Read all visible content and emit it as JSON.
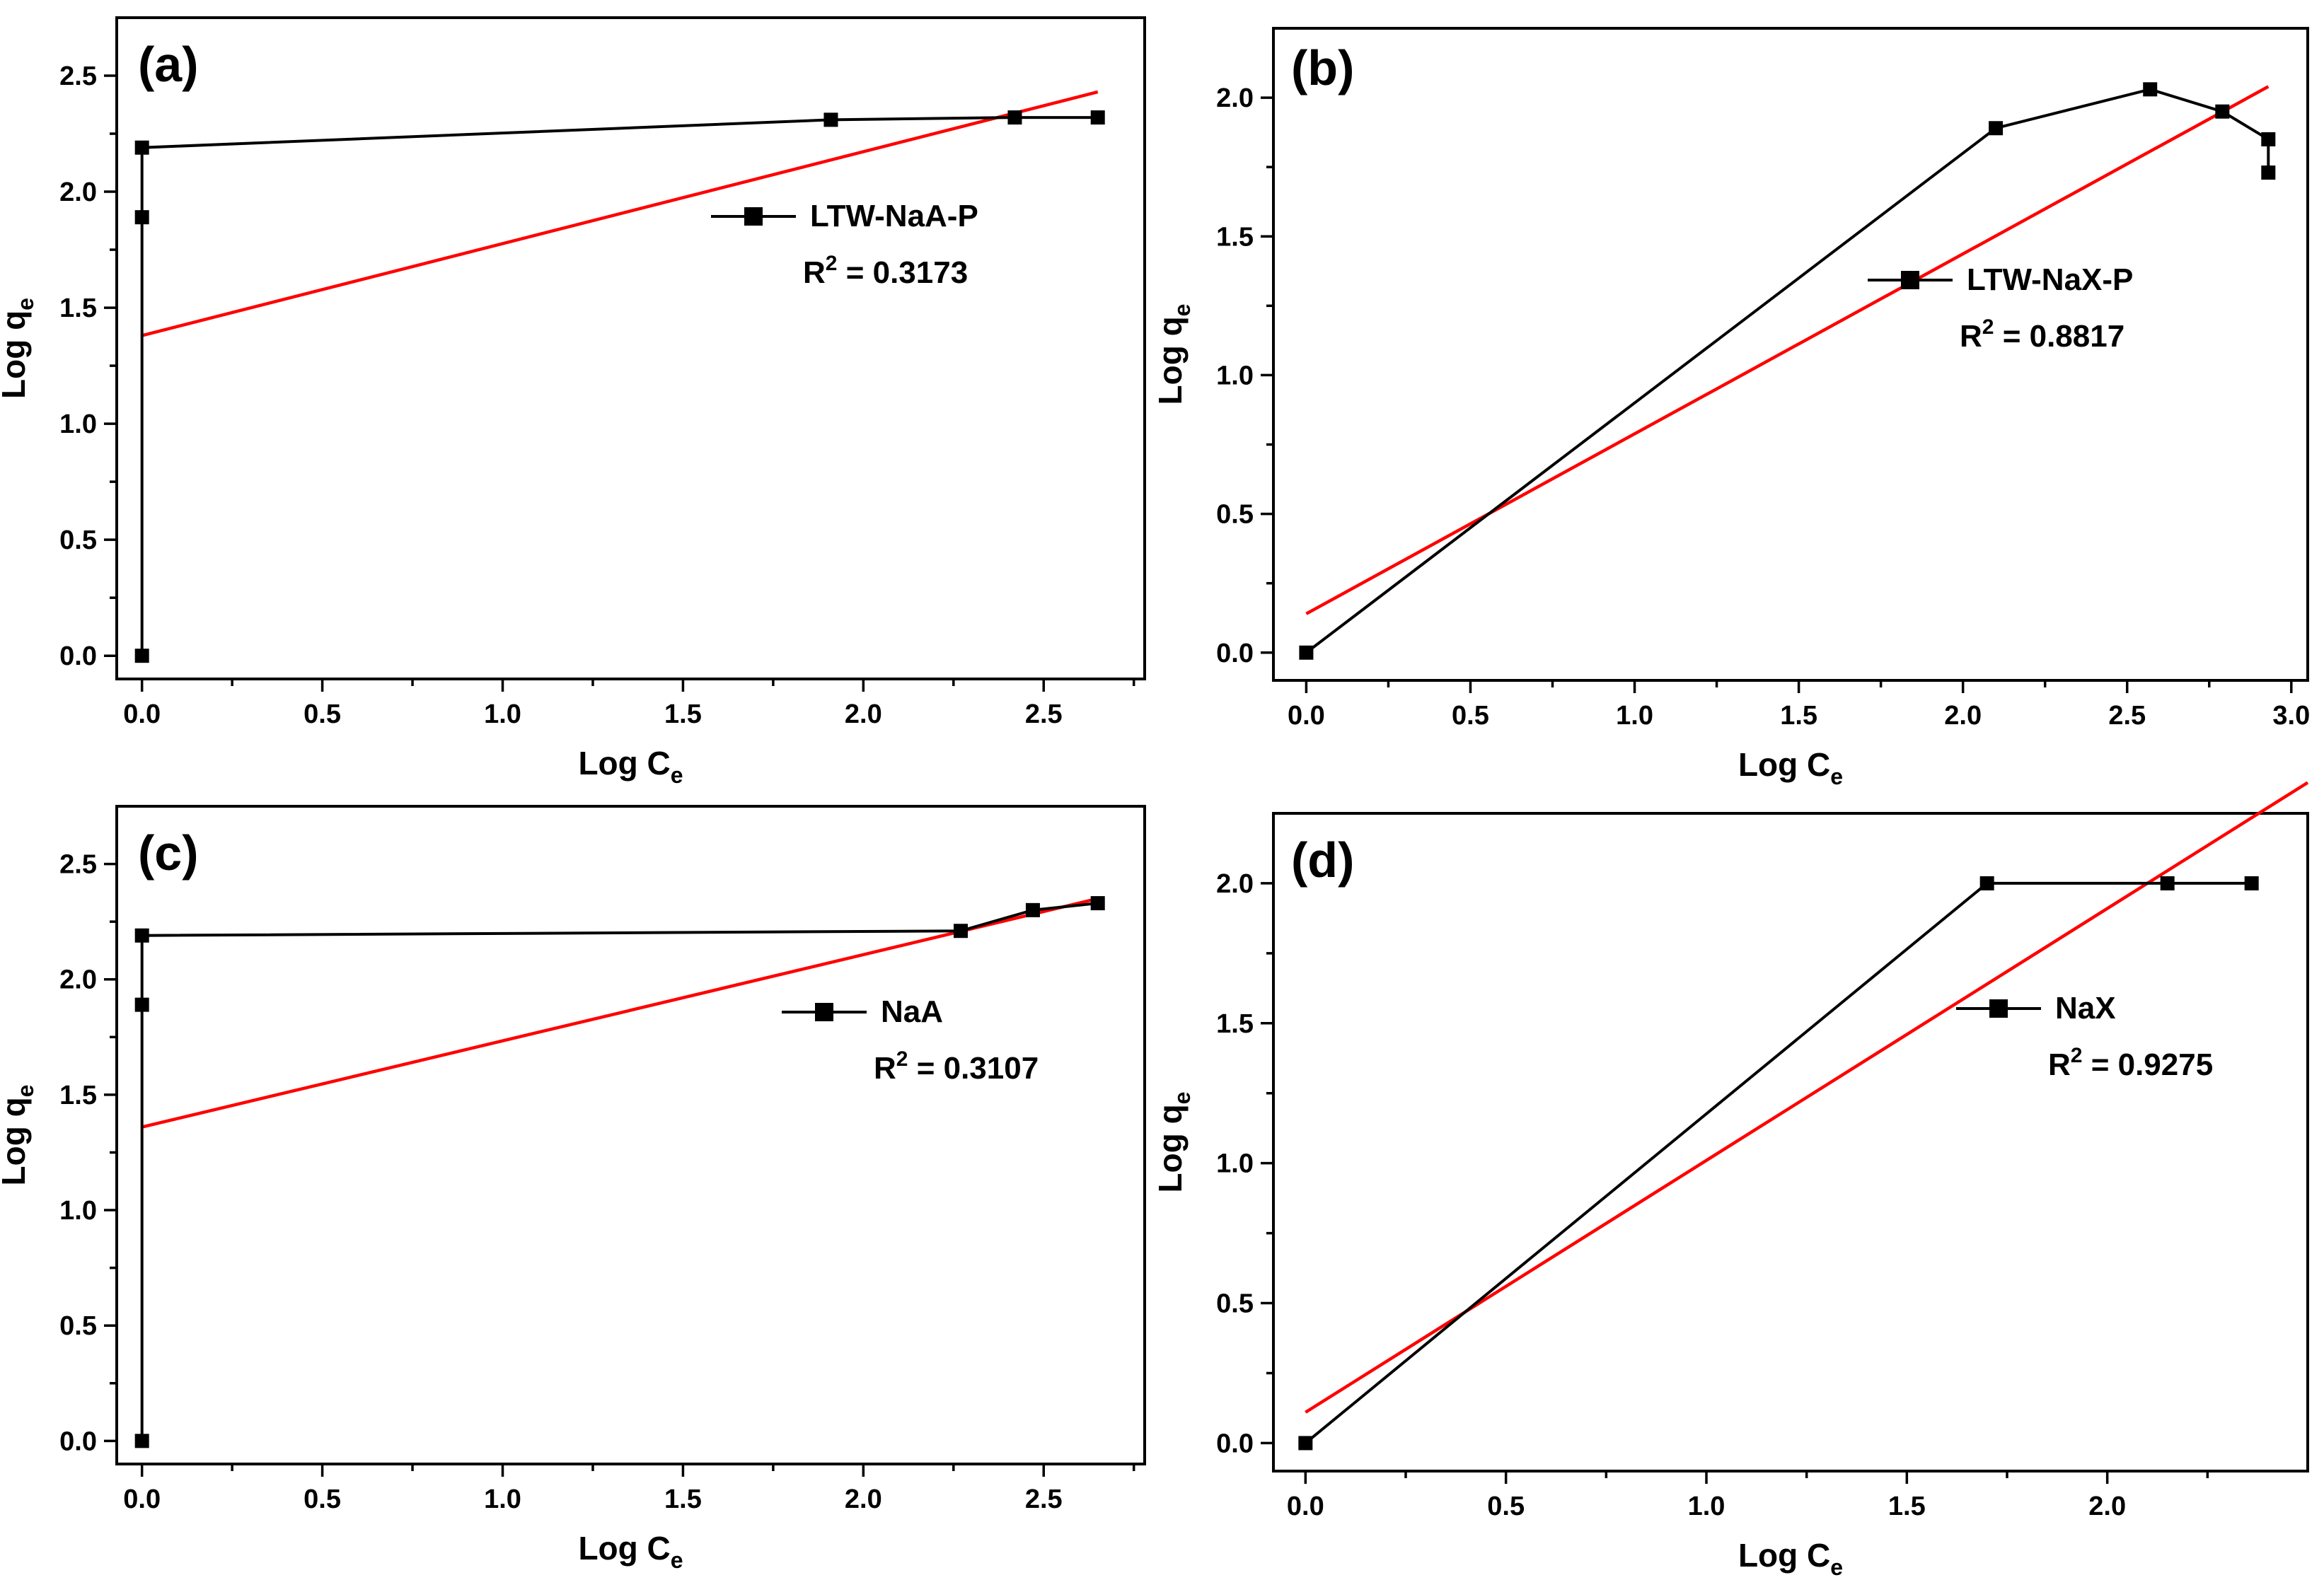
{
  "chart_data": [
    {
      "type": "line",
      "panel_label": "(a)",
      "xlabel": "Log C",
      "xlabel_sub": "e",
      "ylabel": "Log q",
      "ylabel_sub": "e",
      "xlim": [
        -0.07,
        2.78
      ],
      "ylim": [
        -0.1,
        2.75
      ],
      "xticks": [
        "0.0",
        "0.5",
        "1.0",
        "1.5",
        "2.0",
        "2.5"
      ],
      "xtick_values": [
        0,
        0.5,
        1.0,
        1.5,
        2.0,
        2.5
      ],
      "yticks": [
        "0.0",
        "0.5",
        "1.0",
        "1.5",
        "2.0",
        "2.5"
      ],
      "ytick_values": [
        0,
        0.5,
        1.0,
        1.5,
        2.0,
        2.5
      ],
      "series": [
        {
          "name": "LTW-NaA-P",
          "x": [
            0,
            0,
            0,
            1.91,
            2.42,
            2.65
          ],
          "y": [
            0,
            1.89,
            2.19,
            2.31,
            2.32,
            2.32
          ]
        }
      ],
      "fit": {
        "x": [
          0,
          2.65
        ],
        "y": [
          1.38,
          2.43
        ],
        "color": "#ff0000"
      },
      "legend": {
        "label": "LTW-NaA-P",
        "r2_prefix": "R",
        "r2_sup": "2",
        "r2_value": "= 0.3173"
      }
    },
    {
      "type": "line",
      "panel_label": "(b)",
      "xlabel": "Log C",
      "xlabel_sub": "e",
      "ylabel": "Log q",
      "ylabel_sub": "e",
      "xlim": [
        -0.1,
        3.05
      ],
      "ylim": [
        -0.1,
        2.25
      ],
      "xticks": [
        "0.0",
        "0.5",
        "1.0",
        "1.5",
        "2.0",
        "2.5",
        "3.0"
      ],
      "xtick_values": [
        0,
        0.5,
        1.0,
        1.5,
        2.0,
        2.5,
        3.0
      ],
      "yticks": [
        "0.0",
        "0.5",
        "1.0",
        "1.5",
        "2.0"
      ],
      "ytick_values": [
        0,
        0.5,
        1.0,
        1.5,
        2.0
      ],
      "series": [
        {
          "name": "LTW-NaX-P",
          "x": [
            0,
            2.1,
            2.57,
            2.79,
            2.93,
            2.93
          ],
          "y": [
            0,
            1.89,
            2.03,
            1.95,
            1.85,
            1.73
          ]
        }
      ],
      "fit": {
        "x": [
          0,
          2.93
        ],
        "y": [
          0.14,
          2.04
        ],
        "color": "#ff0000"
      },
      "legend": {
        "label": "LTW-NaX-P",
        "r2_prefix": "R",
        "r2_sup": "2",
        "r2_value": "= 0.8817"
      }
    },
    {
      "type": "line",
      "panel_label": "(c)",
      "xlabel": "Log C",
      "xlabel_sub": "e",
      "ylabel": "Log q",
      "ylabel_sub": "e",
      "xlim": [
        -0.07,
        2.78
      ],
      "ylim": [
        -0.1,
        2.75
      ],
      "xticks": [
        "0.0",
        "0.5",
        "1.0",
        "1.5",
        "2.0",
        "2.5"
      ],
      "xtick_values": [
        0,
        0.5,
        1.0,
        1.5,
        2.0,
        2.5
      ],
      "yticks": [
        "0.0",
        "0.5",
        "1.0",
        "1.5",
        "2.0",
        "2.5"
      ],
      "ytick_values": [
        0,
        0.5,
        1.0,
        1.5,
        2.0,
        2.5
      ],
      "series": [
        {
          "name": "NaA",
          "x": [
            0,
            0,
            0,
            2.27,
            2.47,
            2.65
          ],
          "y": [
            0,
            1.89,
            2.19,
            2.21,
            2.3,
            2.33
          ]
        }
      ],
      "fit": {
        "x": [
          0,
          2.65
        ],
        "y": [
          1.36,
          2.35
        ],
        "color": "#ff0000"
      },
      "legend": {
        "label": "NaA",
        "r2_prefix": "R",
        "r2_sup": "2",
        "r2_value": "= 0.3107"
      }
    },
    {
      "type": "line",
      "panel_label": "(d)",
      "xlabel": "Log C",
      "xlabel_sub": "e",
      "ylabel": "Log q",
      "ylabel_sub": "e",
      "xlim": [
        -0.08,
        2.5
      ],
      "ylim": [
        -0.1,
        2.25
      ],
      "xticks": [
        "0.0",
        "0.5",
        "1.0",
        "1.5",
        "2.0"
      ],
      "xtick_values": [
        0,
        0.5,
        1.0,
        1.5,
        2.0
      ],
      "yticks": [
        "0.0",
        "0.5",
        "1.0",
        "1.5",
        "2.0"
      ],
      "ytick_values": [
        0,
        0.5,
        1.0,
        1.5,
        2.0
      ],
      "series": [
        {
          "name": "NaX",
          "x": [
            0,
            1.7,
            2.15,
            2.36
          ],
          "y": [
            0,
            2.0,
            2.0,
            2.0
          ]
        }
      ],
      "fit": {
        "x": [
          0,
          2.5
        ],
        "y": [
          0.11,
          2.36
        ],
        "color": "#ff0000"
      },
      "legend": {
        "label": "NaX",
        "r2_prefix": "R",
        "r2_sup": "2",
        "r2_value": "= 0.9275"
      }
    }
  ]
}
